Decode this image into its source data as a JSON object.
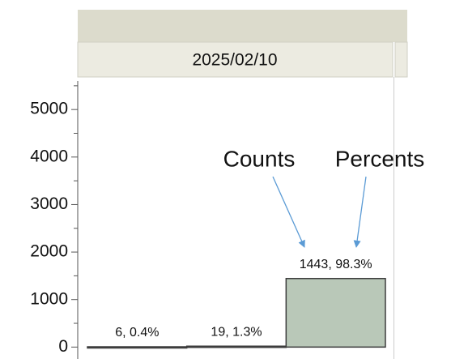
{
  "chart_data": {
    "type": "bar",
    "group_label": "2025/02/10",
    "categories": [
      null,
      null,
      null
    ],
    "values": [
      6,
      19,
      1443
    ],
    "value_labels": [
      "6, 0.4%",
      "19, 1.3%",
      "1443, 98.3%"
    ],
    "color": "#b9c8b8",
    "ylim": [
      -250,
      5600
    ],
    "yticks": [
      0,
      1000,
      2000,
      3000,
      4000,
      5000
    ],
    "yminorticks": [
      500,
      1500,
      2500,
      3500,
      4500,
      5500
    ],
    "annotations": [
      "Counts",
      "Percents"
    ]
  }
}
